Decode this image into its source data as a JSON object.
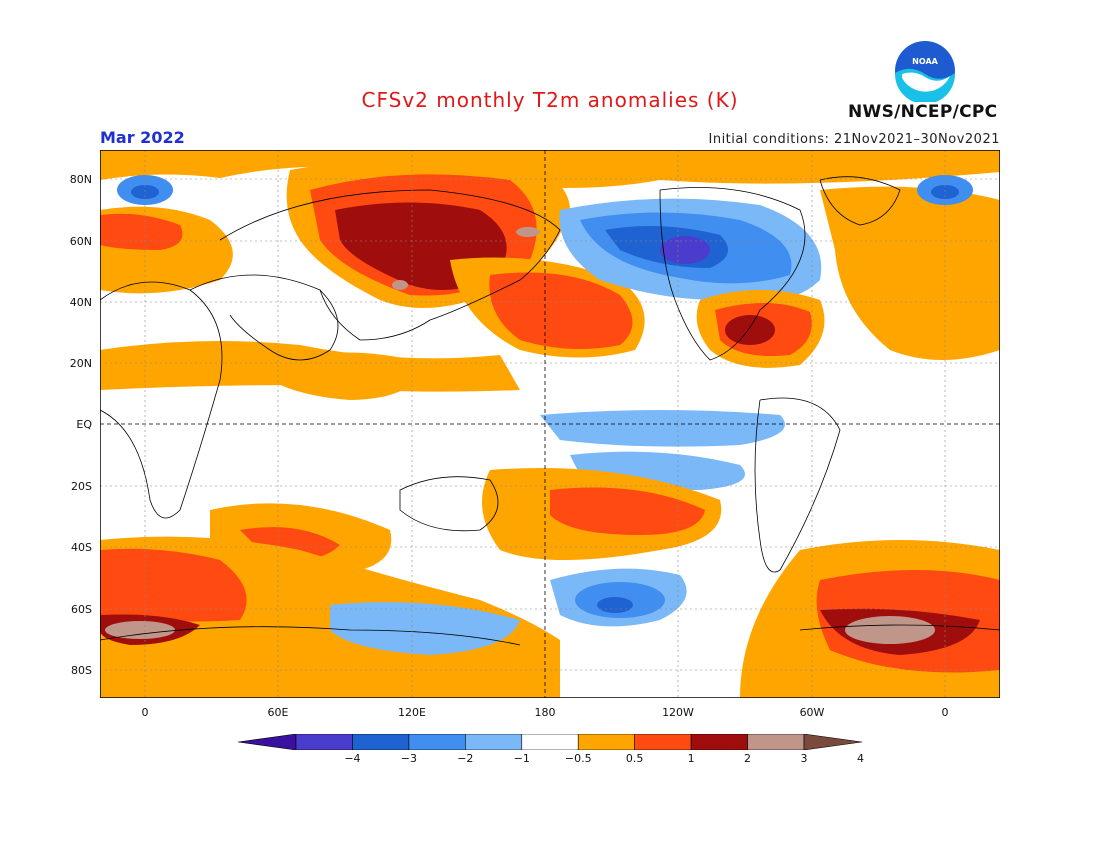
{
  "header": {
    "title": "CFSv2 monthly T2m anomalies (K)",
    "valid_month": "Mar 2022",
    "initial_conditions": "Initial conditions: 21Nov2021–30Nov2021",
    "agency": "NWS/NCEP/CPC",
    "logo_text": "NOAA"
  },
  "axes": {
    "lat_labels": [
      "80N",
      "60N",
      "40N",
      "20N",
      "EQ",
      "20S",
      "40S",
      "60S",
      "80S"
    ],
    "lon_labels": [
      "0",
      "60E",
      "120E",
      "180",
      "120W",
      "60W",
      "0"
    ]
  },
  "colorbar": {
    "labels": [
      "−4",
      "−3",
      "−2",
      "−1",
      "−0.5",
      "0.5",
      "1",
      "2",
      "3",
      "4"
    ],
    "colors": [
      "#3a10a0",
      "#4a3ccc",
      "#1f62d2",
      "#3f8ef0",
      "#7ab8f8",
      "#ffffff",
      "#ffa500",
      "#ff4a12",
      "#a00d0d",
      "#c0968a",
      "#7a4a3c"
    ]
  }
}
